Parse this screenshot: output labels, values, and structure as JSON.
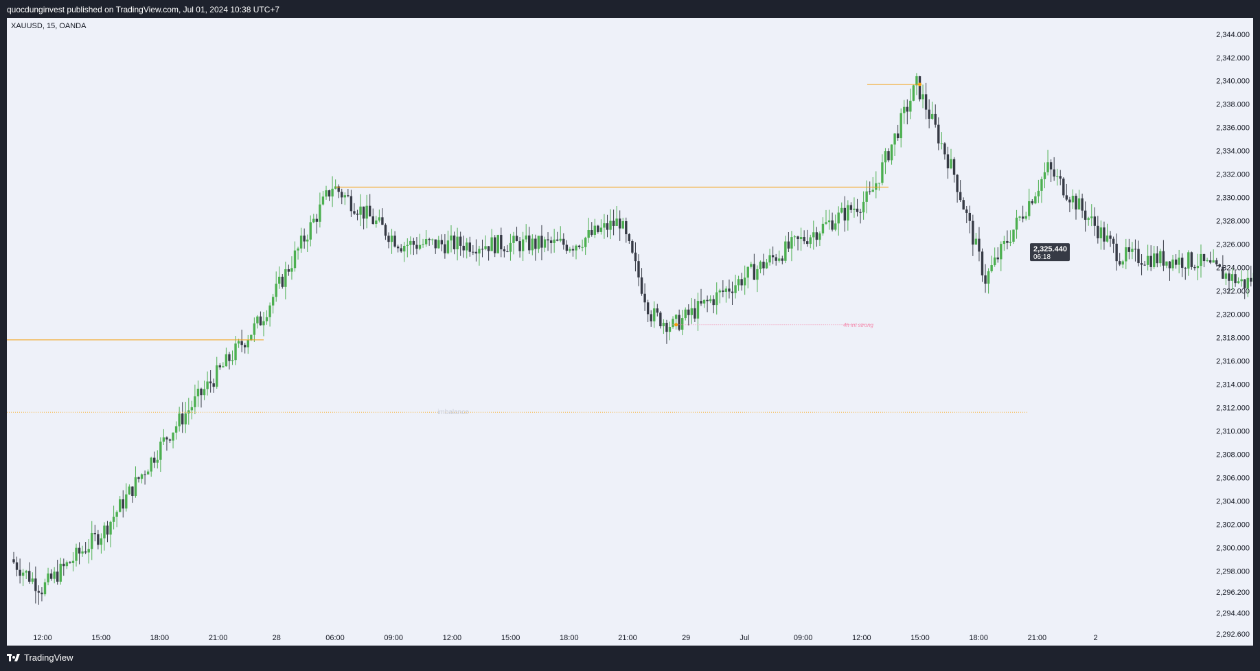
{
  "header": {
    "published_text": "quocdunginvest published on TradingView.com, Jul 01, 2024 10:38 UTC+7"
  },
  "footer": {
    "brand": "TradingView",
    "logo_icon": "tradingview-logo-icon"
  },
  "colors": {
    "up": "#4caf50",
    "down": "#363a45",
    "level": "#f59e0b",
    "strong": "#f48fb1",
    "imbalance": "#f9b233",
    "label_bg": "#363a45"
  },
  "chart_data": {
    "type": "candlestick",
    "title": "XAUUSD, 15, OANDA",
    "ylim": [
      2291.6,
      2345.4
    ],
    "y_ticks": [
      "2,344.000",
      "2,342.000",
      "2,340.000",
      "2,338.000",
      "2,336.000",
      "2,334.000",
      "2,332.000",
      "2,330.000",
      "2,328.000",
      "2,326.000",
      "2,324.000",
      "2,322.000",
      "2,320.000",
      "2,318.000",
      "2,316.000",
      "2,314.000",
      "2,312.000",
      "2,310.000",
      "2,308.000",
      "2,306.000",
      "2,304.000",
      "2,302.000",
      "2,300.000",
      "2,298.000",
      "2,296.200",
      "2,294.400",
      "2,292.600"
    ],
    "x_ticks": [
      "12:00",
      "15:00",
      "18:00",
      "21:00",
      "28",
      "06:00",
      "09:00",
      "12:00",
      "15:00",
      "18:00",
      "21:00",
      "29",
      "Jul",
      "09:00",
      "12:00",
      "15:00",
      "18:00",
      "21:00",
      "2"
    ],
    "last_price": {
      "value": "2,325.440",
      "countdown": "06:18",
      "price": 2325.44
    },
    "annotations": [
      {
        "name": "swing-high-level",
        "price": 2339.7,
        "color": "#f59e0b",
        "style": "solid",
        "label": ""
      },
      {
        "name": "prior-high-level",
        "price": 2330.9,
        "color": "#f59e0b",
        "style": "solid",
        "label": ""
      },
      {
        "name": "left-level",
        "price": 2317.8,
        "color": "#f59e0b",
        "style": "solid",
        "label": ""
      },
      {
        "name": "4h-int-strong-level",
        "price": 2319.1,
        "color": "#f48fb1",
        "style": "dotted",
        "label": "4h int strong"
      },
      {
        "name": "imbalance-level",
        "price": 2311.6,
        "color": "#f9b233",
        "style": "dotted",
        "label": "imbalance"
      }
    ],
    "key_points": [
      {
        "name": "start",
        "price": 2299.0
      },
      {
        "name": "low-1",
        "price": 2296.5
      },
      {
        "name": "high-1",
        "price": 2331.0
      },
      {
        "name": "low-2",
        "price": 2319.0
      },
      {
        "name": "peak",
        "price": 2339.7
      },
      {
        "name": "pullback-low",
        "price": 2323.0
      },
      {
        "name": "bounce-high",
        "price": 2332.5
      },
      {
        "name": "low-3",
        "price": 2322.6
      },
      {
        "name": "recent-high",
        "price": 2327.8
      },
      {
        "name": "last",
        "price": 2325.44
      }
    ]
  }
}
